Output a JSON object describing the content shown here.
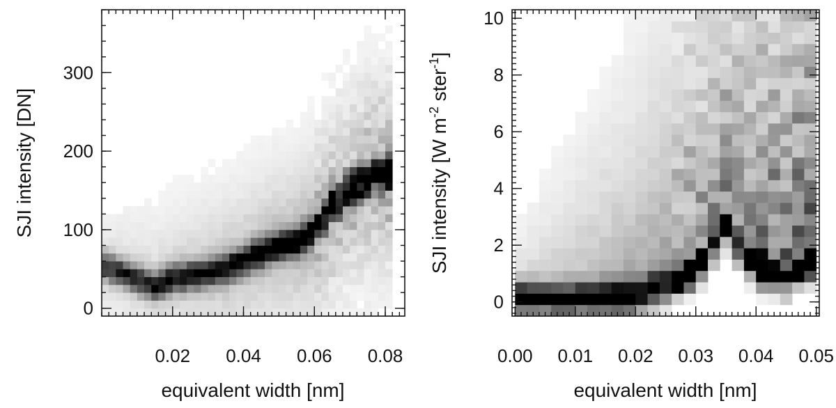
{
  "chart_data": [
    {
      "type": "heatmap",
      "colormap": "white-to-black (gray)",
      "xlabel": "equivalent width [nm]",
      "ylabel": "SJI intensity [DN]",
      "xlim": [
        0.0,
        0.0855
      ],
      "ylim": [
        -10,
        380
      ],
      "xticks": [
        0.02,
        0.04,
        0.06,
        0.08
      ],
      "xtick_labels": [
        "0.02",
        "0.04",
        "0.06",
        "0.08"
      ],
      "yticks": [
        0,
        100,
        200,
        300
      ],
      "ytick_labels": [
        "0",
        "100",
        "200",
        "300"
      ],
      "x_minor_step": 0.002,
      "y_minor_step": 20,
      "bin_width_x": 0.002,
      "bin_width_y": 10,
      "ridge": [
        [
          0.0,
          55
        ],
        [
          0.015,
          28
        ],
        [
          0.02,
          38
        ],
        [
          0.03,
          45
        ],
        [
          0.035,
          50
        ],
        [
          0.042,
          65
        ],
        [
          0.05,
          80
        ],
        [
          0.055,
          85
        ],
        [
          0.06,
          100
        ],
        [
          0.065,
          130
        ],
        [
          0.07,
          150
        ],
        [
          0.075,
          165
        ],
        [
          0.08,
          172
        ]
      ],
      "extent_x": [
        0.0,
        0.082
      ],
      "extent_y": [
        -10,
        370
      ]
    },
    {
      "type": "heatmap",
      "colormap": "white-to-black (gray)",
      "xlabel": "equivalent width [nm]",
      "ylabel_parts": [
        "SJI intensity [W m",
        "-2",
        " ster",
        "-1",
        "]"
      ],
      "xlim": [
        -0.0005,
        0.0505
      ],
      "ylim": [
        -0.5,
        10.3
      ],
      "xticks": [
        0.0,
        0.01,
        0.02,
        0.03,
        0.04,
        0.05
      ],
      "xtick_labels": [
        "0.00",
        "0.01",
        "0.02",
        "0.03",
        "0.04",
        "0.05"
      ],
      "yticks": [
        0,
        2,
        4,
        6,
        8,
        10
      ],
      "ytick_labels": [
        "0",
        "2",
        "4",
        "6",
        "8",
        "10"
      ],
      "x_minor_step": 0.001,
      "y_minor_step": 0.2,
      "bin_width_x": 0.002,
      "bin_width_y": 0.4,
      "ridge": [
        [
          0.0,
          0.1
        ],
        [
          0.01,
          0.05
        ],
        [
          0.02,
          0.1
        ],
        [
          0.025,
          0.5
        ],
        [
          0.03,
          1.0
        ],
        [
          0.035,
          2.5
        ],
        [
          0.04,
          1.0
        ],
        [
          0.045,
          0.8
        ],
        [
          0.049,
          1.3
        ]
      ],
      "extent_x": [
        0.0,
        0.049
      ],
      "extent_y": [
        -0.5,
        10.2
      ]
    }
  ]
}
